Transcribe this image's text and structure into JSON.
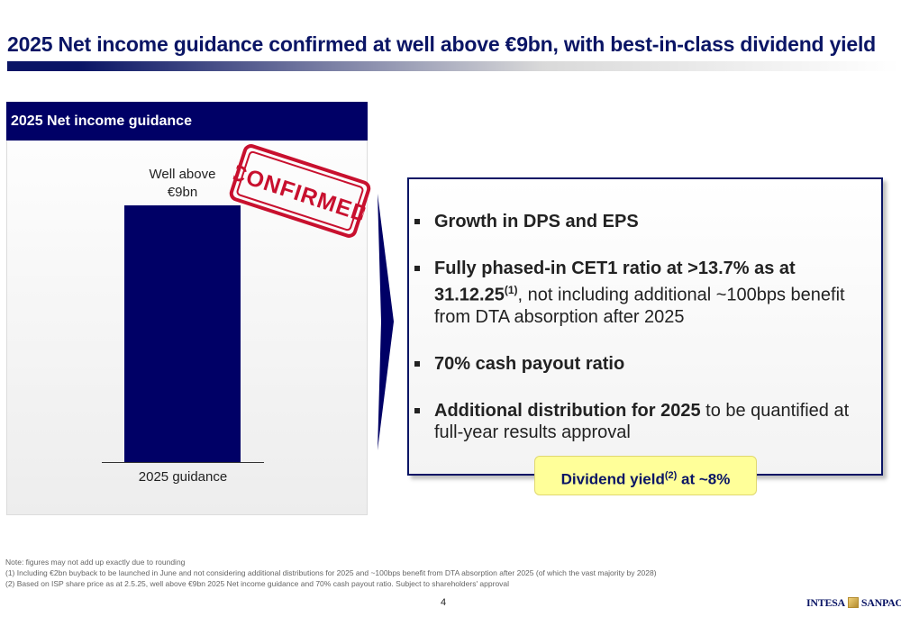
{
  "slide": {
    "title": "2025 Net income guidance confirmed at well above €9bn, with best-in-class dividend yield",
    "page_number": "4"
  },
  "left_panel": {
    "header": "2025 Net income guidance",
    "bar_label_line1": "Well above",
    "bar_label_line2": "€9bn",
    "category_label": "2025 guidance",
    "stamp_text": "CONFIRMED"
  },
  "chart_data": {
    "type": "bar",
    "categories": [
      "2025 guidance"
    ],
    "values": [
      9
    ],
    "title": "2025 Net income guidance",
    "data_labels": [
      "Well above €9bn"
    ]
  },
  "right_box": {
    "bullet1_bold": "Growth in DPS and EPS",
    "bullet2_bold": "Fully phased-in CET1 ratio at >13.7% as at 31.12.25",
    "bullet2_sup": "(1)",
    "bullet2_rest": ", not including additional ~100bps benefit from DTA absorption after 2025",
    "bullet3_bold": "70% cash payout ratio",
    "bullet4_bold": "Additional distribution for 2025",
    "bullet4_rest": " to be quantified at full-year results approval"
  },
  "yield_box": {
    "text_before": "Dividend yield",
    "sup": "(2)",
    "text_after": " at ~8%"
  },
  "notes": {
    "line1": "Note: figures may not add up exactly due to rounding",
    "line2": "(1)  Including €2bn buyback to be launched in June and not considering additional distributions for 2025 and ~100bps benefit from DTA absorption after 2025 (of which the vast majority by 2028)",
    "line3": "(2)  Based on ISP share price as at 2.5.25, well above €9bn 2025 Net income guidance and 70% cash payout ratio. Subject to shareholders' approval"
  },
  "logo": {
    "left": "INTESA",
    "right": "SANPAOLO"
  },
  "colors": {
    "navy": "#000066",
    "title_blue": "#0a1565",
    "stamp_red": "#c8102e",
    "yield_yellow": "#ffff99"
  }
}
